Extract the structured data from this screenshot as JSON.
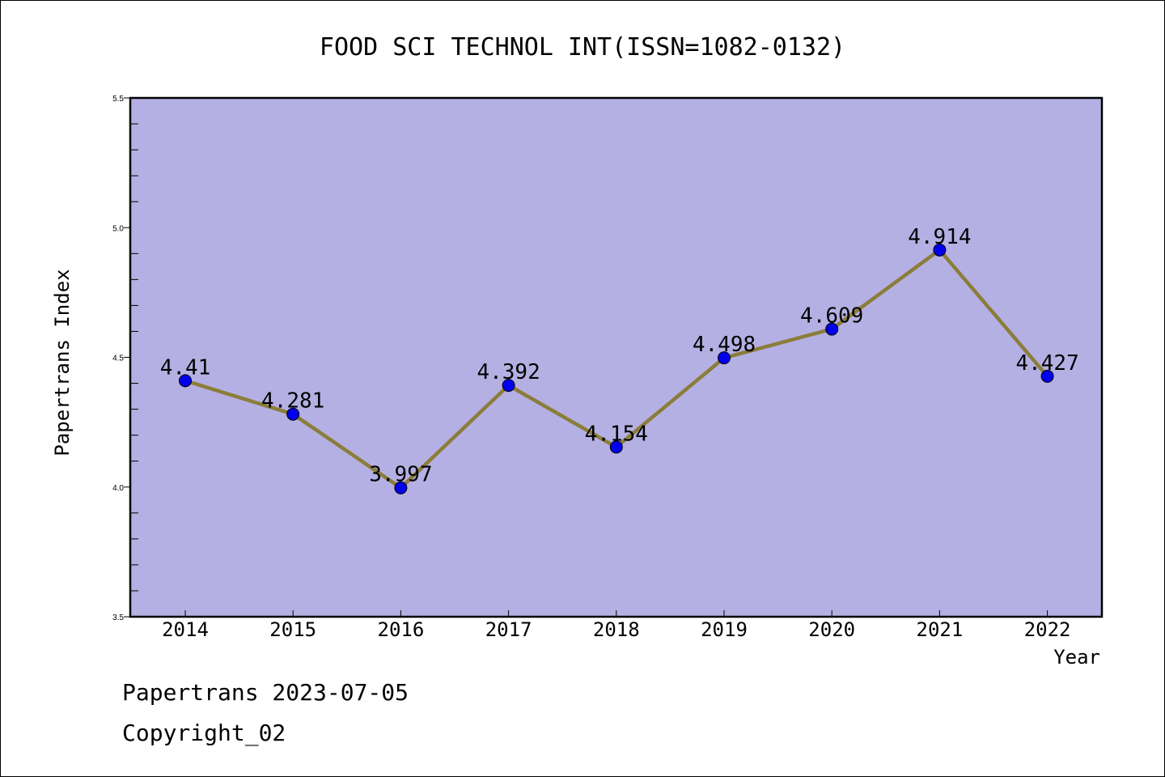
{
  "chart_data": {
    "type": "line",
    "title": "FOOD SCI TECHNOL INT(ISSN=1082-0132)",
    "xlabel": "Year",
    "ylabel": "Papertrans Index",
    "categories": [
      "2014",
      "2015",
      "2016",
      "2017",
      "2018",
      "2019",
      "2020",
      "2021",
      "2022"
    ],
    "values": [
      4.41,
      4.281,
      3.997,
      4.392,
      4.154,
      4.498,
      4.609,
      4.914,
      4.427
    ],
    "data_labels": [
      "4.41",
      "4.281",
      "3.997",
      "4.392",
      "4.154",
      "4.498",
      "4.609",
      "4.914",
      "4.427"
    ],
    "ylim": [
      3.5,
      5.5
    ],
    "yticks": [
      3.5,
      4.0,
      4.5,
      5.0,
      5.5
    ],
    "ytick_labels": [
      "3.5",
      "4.0",
      "4.5",
      "5.0",
      "5.5"
    ],
    "grid": false,
    "colors": {
      "plot_background": "#b5b0e3",
      "line": "#8b7d3a",
      "marker": "#0000ee"
    }
  },
  "footer": {
    "line1": "Papertrans 2023-07-05",
    "line2": "Copyright_02"
  }
}
